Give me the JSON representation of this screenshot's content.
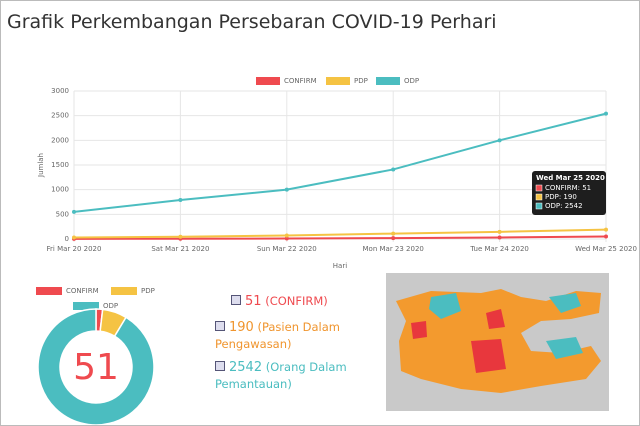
{
  "header": {
    "title": "Grafik Perkembangan Persebaran COVID-19 Perhari"
  },
  "chart_data": [
    {
      "type": "line",
      "x_label": "Hari",
      "y_label": "Jumlah",
      "x": [
        "Fri Mar 20 2020",
        "Sat Mar 21 2020",
        "Sun Mar 22 2020",
        "Mon Mar 23 2020",
        "Tue Mar 24 2020",
        "Wed Mar 25 2020"
      ],
      "series": [
        {
          "name": "CONFIRM",
          "color": "#ef4a4f",
          "values": [
            2,
            6,
            9,
            18,
            31,
            51
          ]
        },
        {
          "name": "PDP",
          "color": "#f5c343",
          "values": [
            30,
            45,
            70,
            110,
            145,
            190
          ]
        },
        {
          "name": "ODP",
          "color": "#4bbdc0",
          "values": [
            550,
            790,
            1000,
            1410,
            2000,
            2542
          ]
        }
      ],
      "ylim": [
        0,
        3000
      ],
      "yticks": [
        0,
        500,
        1000,
        1500,
        2000,
        2500,
        3000
      ],
      "grid": true,
      "tooltip": {
        "title": "Wed Mar 25 2020",
        "lines": [
          "CONFIRM: 51",
          "PDP: 190",
          "ODP: 2542"
        ]
      }
    },
    {
      "type": "doughnut",
      "center_label": "51",
      "categories": [
        "CONFIRM",
        "PDP",
        "ODP"
      ],
      "colors": [
        "#ef4a4f",
        "#f5c343",
        "#4bbdc0"
      ],
      "values": [
        51,
        190,
        2542
      ]
    }
  ],
  "stats": [
    {
      "value": 51,
      "label": "(CONFIRM)",
      "color": "#ef4a4f"
    },
    {
      "value": 190,
      "label": "(Pasien Dalam Pengawasan)",
      "color": "#f0952e"
    },
    {
      "value": 2542,
      "label": "(Orang Dalam Pemantauan)",
      "color": "#4bbdc0"
    }
  ]
}
